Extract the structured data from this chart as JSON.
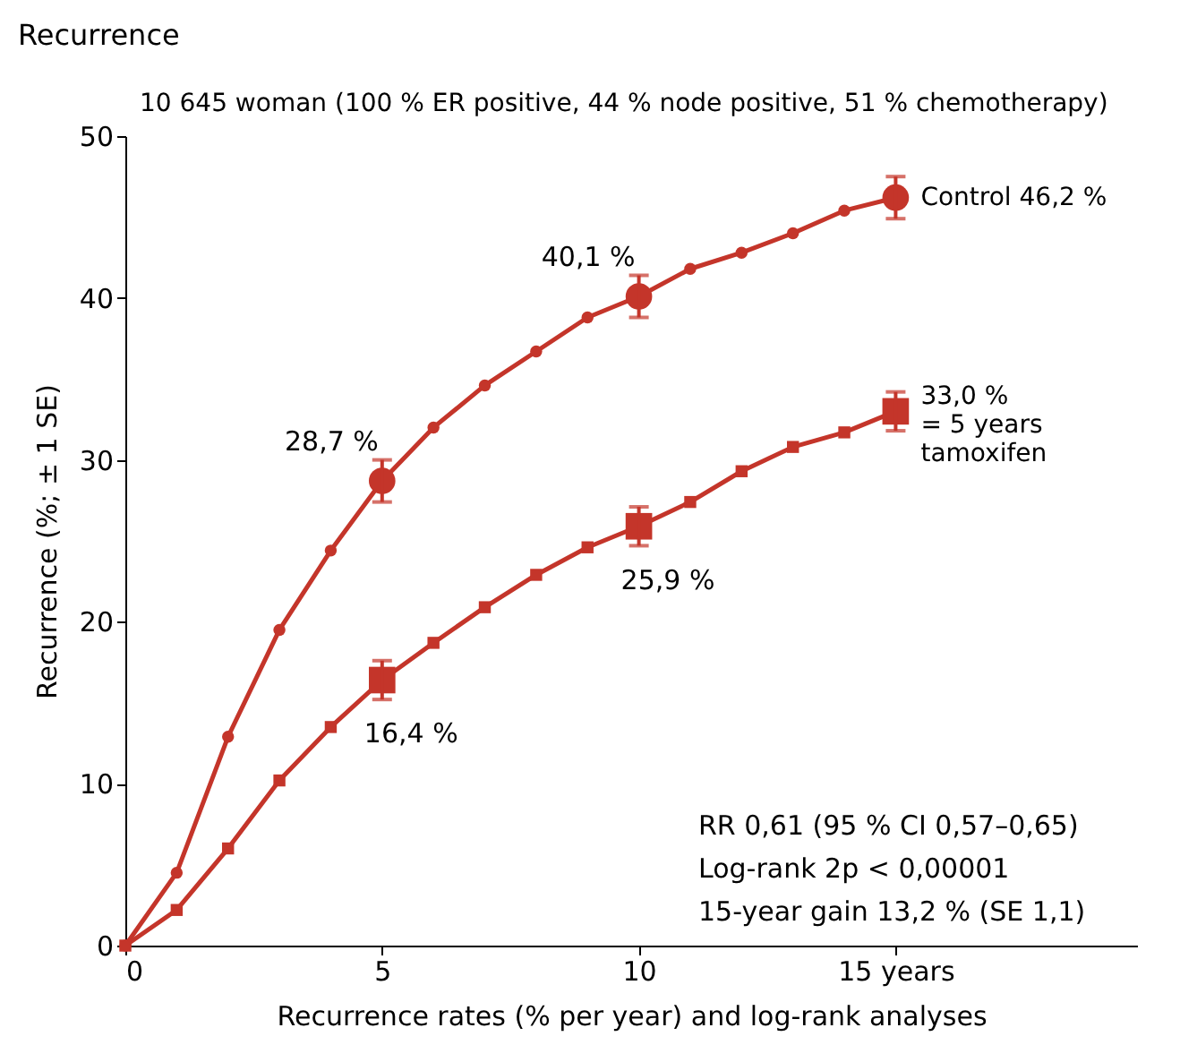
{
  "chart_data": {
    "type": "line",
    "title": "Recurrence",
    "xlabel": "Recurrence rates (% per year) and log-rank analyses",
    "ylabel": "Recurrence (%; ± 1 SE)",
    "x": [
      0,
      1,
      2,
      3,
      4,
      5,
      6,
      7,
      8,
      9,
      10,
      11,
      12,
      13,
      14,
      15
    ],
    "xlim": [
      0,
      19.7
    ],
    "xticks": [
      0,
      5,
      10,
      {
        "value": 15,
        "label": "15 years"
      }
    ],
    "ylim": [
      0,
      50
    ],
    "yticks": [
      0,
      10,
      20,
      30,
      40,
      50
    ],
    "grid": false,
    "line_style": "solid",
    "series": [
      {
        "name": "Control",
        "color": "#c4352a",
        "marker": "circle",
        "values": [
          0,
          4.5,
          12.9,
          19.5,
          24.4,
          28.7,
          32.0,
          34.6,
          36.7,
          38.8,
          40.1,
          41.8,
          42.8,
          44.0,
          45.4,
          46.2
        ],
        "errors": [
          null,
          null,
          null,
          null,
          null,
          1.3,
          null,
          null,
          null,
          null,
          1.3,
          null,
          null,
          null,
          null,
          1.3
        ],
        "value_labels": [
          null,
          null,
          null,
          null,
          null,
          "28,7 %",
          null,
          null,
          null,
          null,
          "40,1 %",
          null,
          null,
          null,
          null,
          "46,2 %"
        ]
      },
      {
        "name": "= 5 years tamoxifen",
        "color": "#c4352a",
        "marker": "square",
        "values": [
          0,
          2.2,
          6.0,
          10.2,
          13.5,
          16.4,
          18.7,
          20.9,
          22.9,
          24.6,
          25.9,
          27.4,
          29.3,
          30.8,
          31.7,
          33.0
        ],
        "errors": [
          null,
          null,
          null,
          null,
          null,
          1.2,
          null,
          null,
          null,
          null,
          1.2,
          null,
          null,
          null,
          null,
          1.2
        ],
        "value_labels": [
          null,
          null,
          null,
          null,
          null,
          "16,4 %",
          null,
          null,
          null,
          null,
          "25,9 %",
          null,
          null,
          null,
          null,
          "33,0 %"
        ]
      }
    ],
    "annotations": [
      "10 645 woman (100 % ER positive, 44 % node positive, 51 % chemotherapy)",
      "RR 0,61 (95 % CI 0,57–0,65)",
      "Log-rank 2p < 0,00001",
      "15-year gain 13,2 % (SE 1,1)"
    ]
  }
}
